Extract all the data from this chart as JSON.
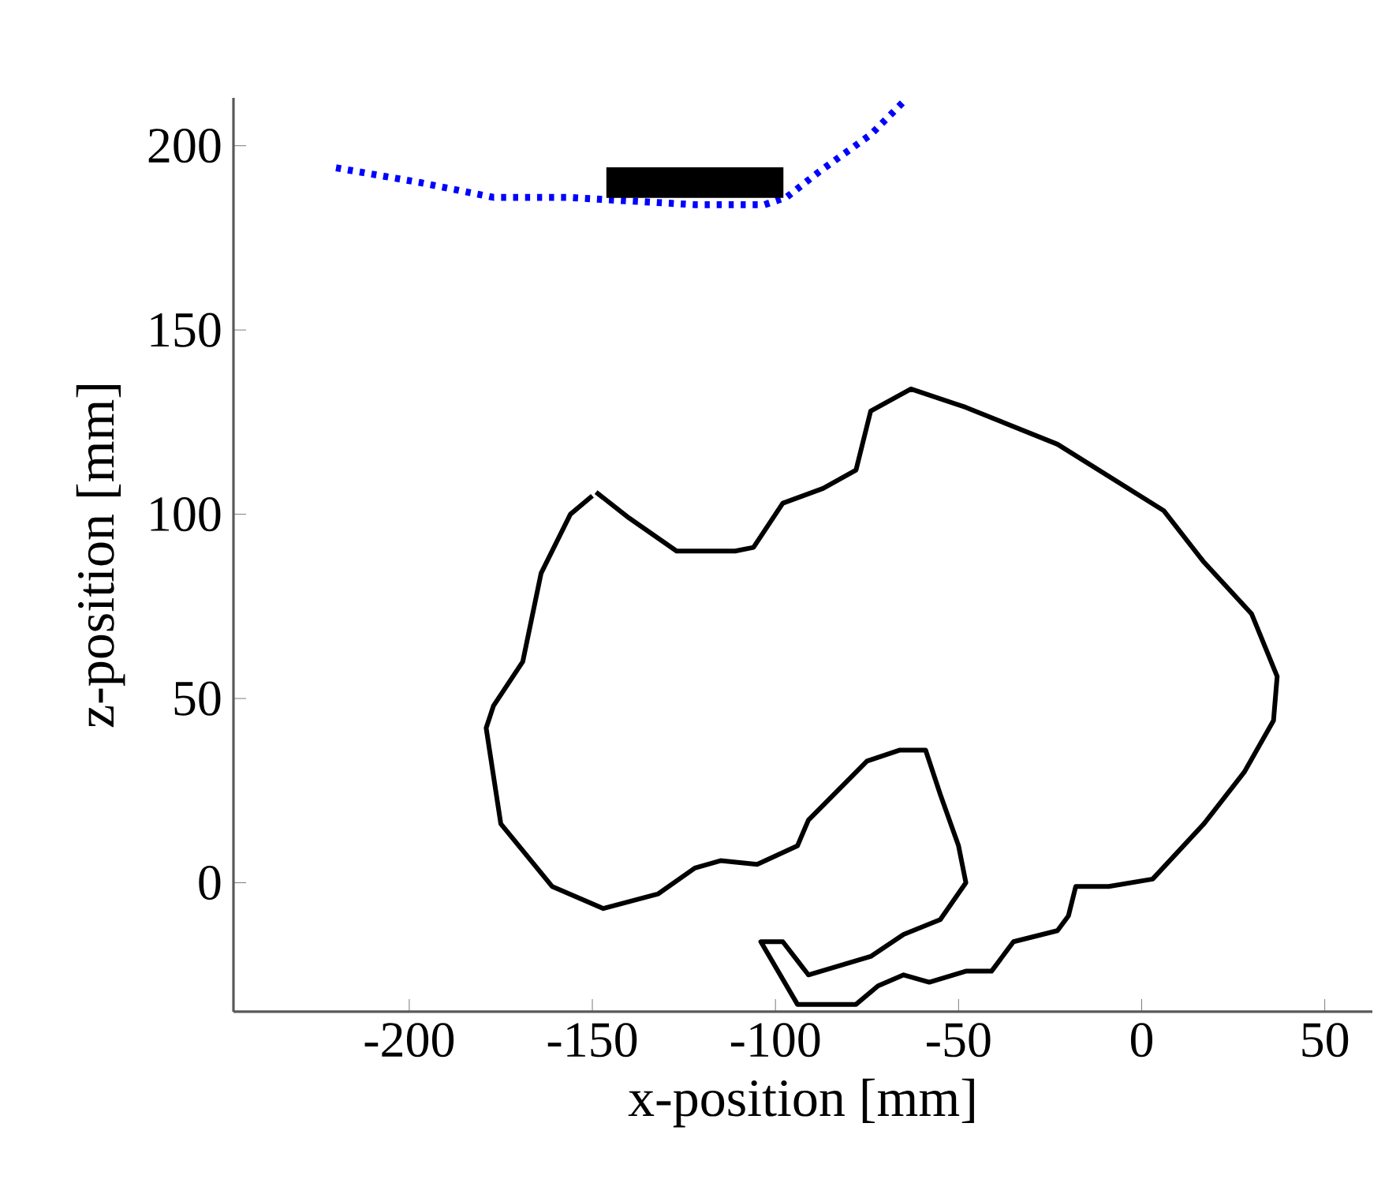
{
  "chart_data": {
    "type": "line",
    "xlabel": "x-position [mm]",
    "ylabel": "z-position [mm]",
    "xlim": [
      -248,
      63
    ],
    "ylim": [
      -35,
      213
    ],
    "xticks": [
      -200,
      -150,
      -100,
      -50,
      0,
      50
    ],
    "yticks": [
      0,
      50,
      100,
      150,
      200
    ],
    "marker": "none",
    "series": [
      {
        "color": "#0000ff",
        "line_style": "dotted",
        "x": [
          -220,
          -197,
          -177,
          -157,
          -122,
          -103,
          -97,
          -88,
          -74,
          -65
        ],
        "values": [
          194,
          190,
          186,
          186,
          184,
          184,
          186,
          193,
          203,
          212
        ]
      },
      {
        "type": "area",
        "color": "#000000",
        "x": [
          -146,
          -98,
          -98,
          -146
        ],
        "values": [
          186,
          186,
          194,
          194
        ]
      },
      {
        "color": "#000000",
        "line_style": "solid",
        "x": [
          -149,
          -140,
          -127,
          -111,
          -106,
          -98,
          -87,
          -78,
          -74,
          -63,
          -48,
          -23,
          6,
          17,
          30,
          37,
          36,
          28,
          17,
          3,
          -9,
          -18,
          -20,
          -23,
          -35,
          -41,
          -48,
          -58,
          -65,
          -72,
          -78,
          -89,
          -94,
          -104,
          -98,
          -91,
          -74,
          -65,
          -55,
          -48,
          -50,
          -55,
          -59,
          -66,
          -75,
          -91,
          -94,
          -105,
          -115,
          -122,
          -132,
          -147,
          -161,
          -175,
          -179,
          -177,
          -169,
          -164,
          -156,
          -150
        ],
        "values": [
          106,
          99,
          90,
          90,
          91,
          103,
          107,
          112,
          128,
          134,
          129,
          119,
          101,
          87,
          73,
          56,
          44,
          30,
          16,
          1,
          -1,
          -1,
          -9,
          -13,
          -16,
          -24,
          -24,
          -27,
          -25,
          -28,
          -33,
          -33,
          -33,
          -16,
          -16,
          -25,
          -20,
          -14,
          -10,
          0,
          10,
          24,
          36,
          36,
          33,
          17,
          10,
          5,
          6,
          4,
          -3,
          -7,
          -1,
          16,
          42,
          48,
          60,
          84,
          100,
          105
        ]
      }
    ]
  }
}
